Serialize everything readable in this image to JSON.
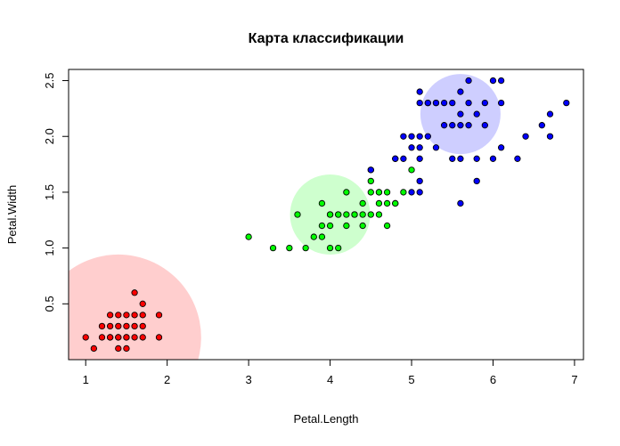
{
  "chart_data": {
    "type": "scatter",
    "title": "Карта классификации",
    "xlabel": "Petal.Length",
    "ylabel": "Petal.Width",
    "xlim": [
      0.79,
      7.11
    ],
    "ylim": [
      -0.0,
      2.6
    ],
    "x_ticks": [
      1,
      2,
      3,
      4,
      5,
      6,
      7
    ],
    "y_ticks": [
      0.5,
      1.0,
      1.5,
      2.0,
      2.5
    ],
    "grid": false,
    "point_outline_color": "#000000",
    "classes": [
      {
        "color": "#ff0000",
        "region_color": "#ffb3b3",
        "center": [
          1.4,
          0.2
        ],
        "points": [
          [
            1.0,
            0.2
          ],
          [
            1.1,
            0.1
          ],
          [
            1.2,
            0.2
          ],
          [
            1.3,
            0.2
          ],
          [
            1.3,
            0.3
          ],
          [
            1.3,
            0.4
          ],
          [
            1.4,
            0.1
          ],
          [
            1.4,
            0.2
          ],
          [
            1.4,
            0.3
          ],
          [
            1.5,
            0.1
          ],
          [
            1.5,
            0.2
          ],
          [
            1.5,
            0.3
          ],
          [
            1.5,
            0.4
          ],
          [
            1.6,
            0.2
          ],
          [
            1.6,
            0.4
          ],
          [
            1.6,
            0.6
          ],
          [
            1.7,
            0.2
          ],
          [
            1.7,
            0.3
          ],
          [
            1.7,
            0.4
          ],
          [
            1.7,
            0.5
          ],
          [
            1.9,
            0.2
          ],
          [
            1.9,
            0.4
          ],
          [
            1.2,
            0.3
          ],
          [
            1.6,
            0.3
          ],
          [
            1.4,
            0.4
          ],
          [
            1.5,
            0.2
          ],
          [
            1.3,
            0.2
          ],
          [
            1.4,
            0.2
          ]
        ]
      },
      {
        "color": "#00ff00",
        "region_color": "#b3ffb3",
        "center": [
          4.0,
          1.3
        ],
        "points": [
          [
            3.0,
            1.1
          ],
          [
            3.3,
            1.0
          ],
          [
            3.5,
            1.0
          ],
          [
            3.6,
            1.3
          ],
          [
            3.7,
            1.0
          ],
          [
            3.8,
            1.1
          ],
          [
            3.9,
            1.1
          ],
          [
            3.9,
            1.2
          ],
          [
            3.9,
            1.4
          ],
          [
            4.0,
            1.0
          ],
          [
            4.0,
            1.2
          ],
          [
            4.0,
            1.3
          ],
          [
            4.1,
            1.0
          ],
          [
            4.1,
            1.3
          ],
          [
            4.2,
            1.2
          ],
          [
            4.2,
            1.3
          ],
          [
            4.2,
            1.5
          ],
          [
            4.3,
            1.3
          ],
          [
            4.4,
            1.2
          ],
          [
            4.4,
            1.3
          ],
          [
            4.4,
            1.4
          ],
          [
            4.5,
            1.3
          ],
          [
            4.5,
            1.5
          ],
          [
            4.5,
            1.6
          ],
          [
            4.6,
            1.3
          ],
          [
            4.6,
            1.4
          ],
          [
            4.6,
            1.5
          ],
          [
            4.7,
            1.2
          ],
          [
            4.7,
            1.4
          ],
          [
            4.7,
            1.5
          ],
          [
            4.8,
            1.4
          ],
          [
            4.8,
            1.8
          ],
          [
            4.9,
            1.5
          ],
          [
            5.0,
            1.7
          ],
          [
            4.5,
            1.7
          ],
          [
            4.1,
            1.3
          ],
          [
            4.3,
            1.3
          ],
          [
            4.0,
            1.3
          ],
          [
            4.6,
            1.5
          ],
          [
            4.8,
            1.4
          ]
        ]
      },
      {
        "color": "#0000ff",
        "region_color": "#b3b3ff",
        "center": [
          5.6,
          2.2
        ],
        "points": [
          [
            4.5,
            1.7
          ],
          [
            4.8,
            1.8
          ],
          [
            4.9,
            1.8
          ],
          [
            4.9,
            2.0
          ],
          [
            5.0,
            1.5
          ],
          [
            5.0,
            1.9
          ],
          [
            5.0,
            2.0
          ],
          [
            5.1,
            1.5
          ],
          [
            5.1,
            1.6
          ],
          [
            5.1,
            1.8
          ],
          [
            5.1,
            1.9
          ],
          [
            5.1,
            2.0
          ],
          [
            5.1,
            2.3
          ],
          [
            5.1,
            2.4
          ],
          [
            5.2,
            2.0
          ],
          [
            5.2,
            2.3
          ],
          [
            5.3,
            1.9
          ],
          [
            5.3,
            2.3
          ],
          [
            5.4,
            2.1
          ],
          [
            5.4,
            2.3
          ],
          [
            5.5,
            1.8
          ],
          [
            5.5,
            2.1
          ],
          [
            5.6,
            1.4
          ],
          [
            5.6,
            1.8
          ],
          [
            5.6,
            2.1
          ],
          [
            5.6,
            2.2
          ],
          [
            5.6,
            2.4
          ],
          [
            5.7,
            2.1
          ],
          [
            5.7,
            2.3
          ],
          [
            5.7,
            2.5
          ],
          [
            5.8,
            1.6
          ],
          [
            5.8,
            1.8
          ],
          [
            5.8,
            2.2
          ],
          [
            5.9,
            2.1
          ],
          [
            5.9,
            2.3
          ],
          [
            6.0,
            1.8
          ],
          [
            6.0,
            2.5
          ],
          [
            6.1,
            1.9
          ],
          [
            6.1,
            2.3
          ],
          [
            6.1,
            2.5
          ],
          [
            6.3,
            1.8
          ],
          [
            6.4,
            2.0
          ],
          [
            6.6,
            2.1
          ],
          [
            6.7,
            2.0
          ],
          [
            6.7,
            2.2
          ],
          [
            6.9,
            2.3
          ],
          [
            5.5,
            2.3
          ],
          [
            5.3,
            2.3
          ],
          [
            5.2,
            2.3
          ]
        ]
      }
    ]
  }
}
